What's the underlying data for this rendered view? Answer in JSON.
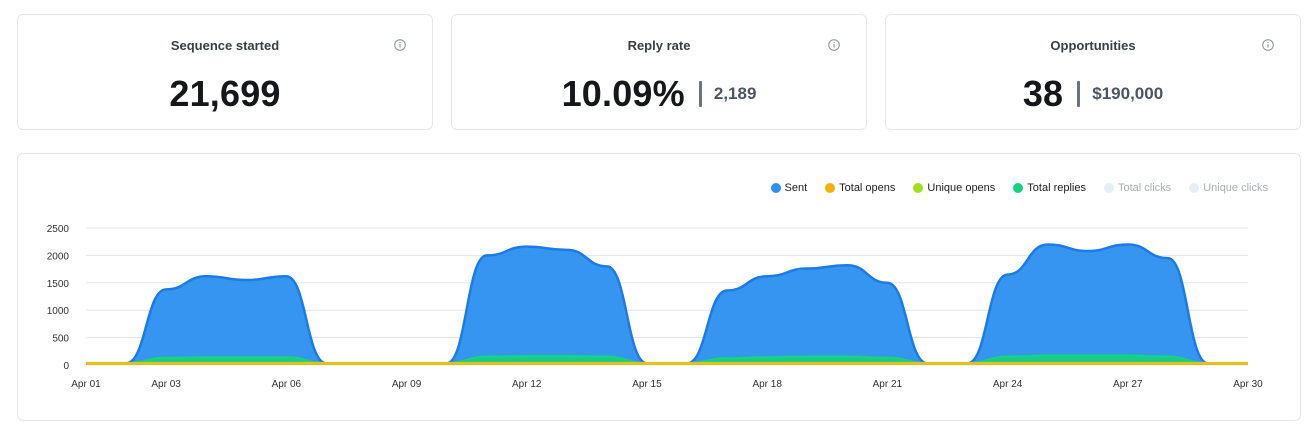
{
  "stats": [
    {
      "title": "Sequence started",
      "value": "21,699",
      "sub": "",
      "icon": "info-icon"
    },
    {
      "title": "Reply rate",
      "value": "10.09%",
      "sub": "2,189",
      "icon": "info-icon"
    },
    {
      "title": "Opportunities",
      "value": "38",
      "sub": "$190,000",
      "icon": "info-icon"
    }
  ],
  "chart_data": {
    "type": "area",
    "xlabel": "",
    "ylabel": "",
    "ylim": [
      0,
      2500
    ],
    "xlim": [
      1,
      30
    ],
    "grid": true,
    "legend_position": "top-right",
    "x_ticks": [
      {
        "x": 1,
        "label": "Apr 01"
      },
      {
        "x": 3,
        "label": "Apr 03"
      },
      {
        "x": 6,
        "label": "Apr 06"
      },
      {
        "x": 9,
        "label": "Apr 09"
      },
      {
        "x": 12,
        "label": "Apr 12"
      },
      {
        "x": 15,
        "label": "Apr 15"
      },
      {
        "x": 18,
        "label": "Apr 18"
      },
      {
        "x": 21,
        "label": "Apr 21"
      },
      {
        "x": 24,
        "label": "Apr 24"
      },
      {
        "x": 27,
        "label": "Apr 27"
      },
      {
        "x": 30,
        "label": "Apr 30"
      }
    ],
    "y_ticks": [
      0,
      500,
      1000,
      1500,
      2000,
      2500
    ],
    "legend": [
      {
        "name": "Sent",
        "color": "#2b8ff0",
        "muted": false
      },
      {
        "name": "Total opens",
        "color": "#f5b10a",
        "muted": false
      },
      {
        "name": "Unique opens",
        "color": "#9fe01a",
        "muted": false
      },
      {
        "name": "Total replies",
        "color": "#15d37f",
        "muted": false
      },
      {
        "name": "Total clicks",
        "color": "#e6eef8",
        "muted": true
      },
      {
        "name": "Unique clicks",
        "color": "#e6eef8",
        "muted": true
      }
    ],
    "series": [
      {
        "name": "Sent",
        "color": "#2b8ff0",
        "stroke": "#1c7be6",
        "x": [
          1,
          2,
          3,
          4,
          5,
          6,
          7,
          8,
          9,
          10,
          11,
          12,
          13,
          14,
          15,
          16,
          17,
          18,
          19,
          20,
          21,
          22,
          23,
          24,
          25,
          26,
          27,
          28,
          29,
          30
        ],
        "y": [
          30,
          30,
          1380,
          1620,
          1550,
          1620,
          30,
          30,
          30,
          30,
          2000,
          2160,
          2100,
          1800,
          30,
          30,
          1360,
          1620,
          1760,
          1820,
          1500,
          30,
          30,
          1650,
          2200,
          2080,
          2200,
          1950,
          30,
          30
        ]
      },
      {
        "name": "Total replies",
        "color": "#15d37f",
        "stroke": "#15d37f",
        "x": [
          1,
          2,
          3,
          4,
          5,
          6,
          7,
          8,
          9,
          10,
          11,
          12,
          13,
          14,
          15,
          16,
          17,
          18,
          19,
          20,
          21,
          22,
          23,
          24,
          25,
          26,
          27,
          28,
          29,
          30
        ],
        "y": [
          30,
          30,
          130,
          140,
          140,
          140,
          30,
          30,
          30,
          30,
          150,
          160,
          160,
          150,
          30,
          30,
          120,
          140,
          150,
          150,
          130,
          30,
          30,
          150,
          170,
          170,
          170,
          150,
          30,
          30
        ]
      },
      {
        "name": "Total opens",
        "color": "#d9c21a",
        "stroke": "#e0c21a",
        "x": [
          1,
          2,
          3,
          4,
          5,
          6,
          7,
          8,
          9,
          10,
          11,
          12,
          13,
          14,
          15,
          16,
          17,
          18,
          19,
          20,
          21,
          22,
          23,
          24,
          25,
          26,
          27,
          28,
          29,
          30
        ],
        "y": [
          30,
          30,
          30,
          30,
          30,
          30,
          30,
          30,
          30,
          30,
          30,
          30,
          30,
          30,
          30,
          30,
          30,
          30,
          30,
          30,
          30,
          30,
          30,
          30,
          30,
          30,
          30,
          30,
          30,
          30
        ]
      }
    ]
  }
}
